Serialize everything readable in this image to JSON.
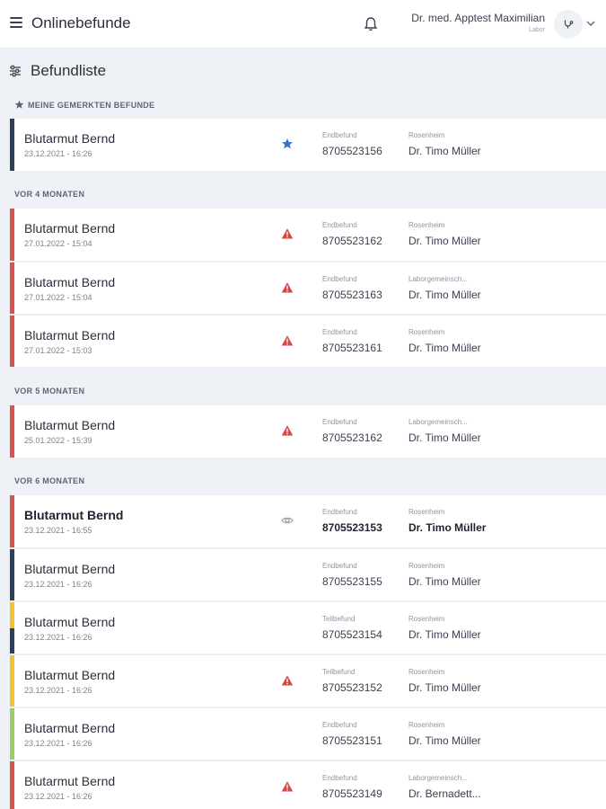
{
  "header": {
    "title": "Onlinebefunde",
    "user_name": "Dr. med. Apptest Maximilian",
    "user_role": "Labor",
    "menu_icon": "hamburger-menu-icon",
    "bell_icon": "bell-icon",
    "avatar_icon": "stethoscope-icon",
    "chevron_icon": "chevron-down-icon"
  },
  "list": {
    "title": "Befundliste",
    "filter_icon": "sliders-icon"
  },
  "colors": {
    "navy": "#2f3e57",
    "red": "#d9534f",
    "yellow": "#f2c230",
    "green": "#9ccc65",
    "star_blue": "#3b6fc4",
    "warning_red": "#d64541",
    "eye_gray": "#9aa3ae"
  },
  "sections": [
    {
      "label": "MEINE GEMERKTEN BEFUNDE",
      "icon": "star-icon",
      "rows": [
        {
          "patient": "Blutarmut Bernd",
          "date": "23.12.2021 - 16:26",
          "status": "star",
          "type": "Endbefund",
          "number": "8705523156",
          "place": "Rosenheim",
          "doctor": "Dr. Timo Müller",
          "accent": "navy",
          "bold": false
        }
      ]
    },
    {
      "label": "VOR 4 MONATEN",
      "rows": [
        {
          "patient": "Blutarmut Bernd",
          "date": "27.01.2022 - 15:04",
          "status": "warning",
          "type": "Endbefund",
          "number": "8705523162",
          "place": "Rosenheim",
          "doctor": "Dr. Timo Müller",
          "accent": "red",
          "bold": false
        },
        {
          "patient": "Blutarmut Bernd",
          "date": "27.01.2022 - 15:04",
          "status": "warning",
          "type": "Endbefund",
          "number": "8705523163",
          "place": "Laborgemeinsch...",
          "doctor": "Dr. Timo Müller",
          "accent": "red",
          "bold": false
        },
        {
          "patient": "Blutarmut Bernd",
          "date": "27.01.2022 - 15:03",
          "status": "warning",
          "type": "Endbefund",
          "number": "8705523161",
          "place": "Rosenheim",
          "doctor": "Dr. Timo Müller",
          "accent": "red",
          "bold": false
        }
      ]
    },
    {
      "label": "VOR 5 MONATEN",
      "rows": [
        {
          "patient": "Blutarmut Bernd",
          "date": "25.01.2022 - 15:39",
          "status": "warning",
          "type": "Endbefund",
          "number": "8705523162",
          "place": "Laborgemeinsch...",
          "doctor": "Dr. Timo Müller",
          "accent": "red",
          "bold": false
        }
      ]
    },
    {
      "label": "VOR 6 MONATEN",
      "rows": [
        {
          "patient": "Blutarmut Bernd",
          "date": "23.12.2021 - 16:55",
          "status": "eye",
          "type": "Endbefund",
          "number": "8705523153",
          "place": "Rosenheim",
          "doctor": "Dr. Timo Müller",
          "accent": "red",
          "bold": true
        },
        {
          "patient": "Blutarmut Bernd",
          "date": "23.12.2021 - 16:26",
          "status": "",
          "type": "Endbefund",
          "number": "8705523155",
          "place": "Rosenheim",
          "doctor": "Dr. Timo Müller",
          "accent": "navy",
          "bold": false
        },
        {
          "patient": "Blutarmut Bernd",
          "date": "23.12.2021 - 16:26",
          "status": "",
          "type": "Teilbefund",
          "number": "8705523154",
          "place": "Rosenheim",
          "doctor": "Dr. Timo Müller",
          "accent": "yellow-navy",
          "bold": false
        },
        {
          "patient": "Blutarmut Bernd",
          "date": "23.12.2021 - 16:26",
          "status": "warning",
          "type": "Teilbefund",
          "number": "8705523152",
          "place": "Rosenheim",
          "doctor": "Dr. Timo Müller",
          "accent": "yellow",
          "bold": false
        },
        {
          "patient": "Blutarmut Bernd",
          "date": "23.12.2021 - 16:26",
          "status": "",
          "type": "Endbefund",
          "number": "8705523151",
          "place": "Rosenheim",
          "doctor": "Dr. Timo Müller",
          "accent": "green",
          "bold": false
        },
        {
          "patient": "Blutarmut Bernd",
          "date": "23.12.2021 - 16:26",
          "status": "warning",
          "type": "Endbefund",
          "number": "8705523149",
          "place": "Laborgemeinsch...",
          "doctor": "Dr. Bernadett...",
          "accent": "red",
          "bold": false
        }
      ]
    }
  ]
}
